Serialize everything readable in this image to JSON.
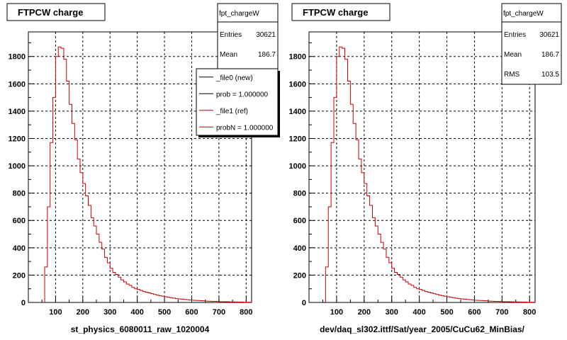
{
  "footer_text": "",
  "panels": [
    {
      "title": "FTPCW charge",
      "xlabel": "st_physics_6080011_raw_1020004",
      "stats": {
        "name": "fpt_chargeW",
        "rows": [
          {
            "label": "Entries",
            "value": "30621"
          },
          {
            "label": "Mean",
            "value": "186.7"
          }
        ]
      },
      "legend": [
        {
          "label": "_file0 (new)",
          "color": "#000000"
        },
        {
          "label": "prob = 1.000000",
          "color": "#000000"
        },
        {
          "label": "_file1 (ref)",
          "color": "#cc0000"
        },
        {
          "label": "probN = 1.000000",
          "color": "#cc0000"
        }
      ]
    },
    {
      "title": "FTPCW charge",
      "xlabel": "dev/daq_sl302.ittf/Sat/year_2005/CuCu62_MinBias/",
      "stats": {
        "name": "fpt_chargeW",
        "rows": [
          {
            "label": "Entries",
            "value": "30621"
          },
          {
            "label": "Mean",
            "value": "186.7"
          },
          {
            "label": "RMS",
            "value": "103.5"
          }
        ]
      },
      "legend": []
    }
  ],
  "chart_data": [
    {
      "type": "histogram",
      "title": "FTPCW charge",
      "xlabel": "st_physics_6080011_raw_1020004",
      "ylabel": "",
      "xlim": [
        0,
        820
      ],
      "ylim": [
        0,
        1980
      ],
      "xticks": [
        100,
        200,
        300,
        400,
        500,
        600,
        700,
        800
      ],
      "yticks": [
        0,
        200,
        400,
        600,
        800,
        1000,
        1200,
        1400,
        1600,
        1800
      ],
      "grid": true,
      "bin_start": 60,
      "bin_width": 10,
      "series": [
        {
          "name": "_file1 (ref)",
          "color": "#cc0000",
          "values": [
            260,
            700,
            1170,
            1500,
            1800,
            1870,
            1860,
            1780,
            1620,
            1450,
            1310,
            1190,
            1050,
            950,
            870,
            780,
            710,
            620,
            560,
            500,
            440,
            390,
            330,
            290,
            250,
            220,
            205,
            185,
            165,
            150,
            135,
            125,
            110,
            100,
            95,
            88,
            80,
            75,
            70,
            64,
            58,
            54,
            50,
            46,
            42,
            38,
            35,
            32,
            28,
            26,
            24,
            22,
            20,
            18,
            16,
            15,
            14,
            13,
            12,
            10,
            9,
            8,
            8,
            7,
            6,
            6,
            5,
            5,
            4,
            4,
            3,
            3,
            3,
            2,
            2,
            2
          ]
        }
      ]
    },
    {
      "type": "histogram",
      "title": "FTPCW charge",
      "xlabel": "dev/daq_sl302.ittf/Sat/year_2005/CuCu62_MinBias/",
      "ylabel": "",
      "xlim": [
        0,
        820
      ],
      "ylim": [
        0,
        1980
      ],
      "xticks": [
        100,
        200,
        300,
        400,
        500,
        600,
        700,
        800
      ],
      "yticks": [
        0,
        200,
        400,
        600,
        800,
        1000,
        1200,
        1400,
        1600,
        1800
      ],
      "grid": true,
      "bin_start": 60,
      "bin_width": 10,
      "series": [
        {
          "name": "",
          "color": "#cc0000",
          "values": [
            260,
            700,
            1170,
            1500,
            1800,
            1870,
            1860,
            1780,
            1620,
            1450,
            1310,
            1190,
            1050,
            950,
            870,
            780,
            710,
            620,
            560,
            500,
            440,
            390,
            330,
            290,
            250,
            220,
            205,
            185,
            165,
            150,
            135,
            125,
            110,
            100,
            95,
            88,
            80,
            75,
            70,
            64,
            58,
            54,
            50,
            46,
            42,
            38,
            35,
            32,
            28,
            26,
            24,
            22,
            20,
            18,
            16,
            15,
            14,
            13,
            12,
            10,
            9,
            8,
            8,
            7,
            6,
            6,
            5,
            5,
            4,
            4,
            3,
            3,
            3,
            2,
            2,
            2
          ]
        }
      ]
    }
  ]
}
